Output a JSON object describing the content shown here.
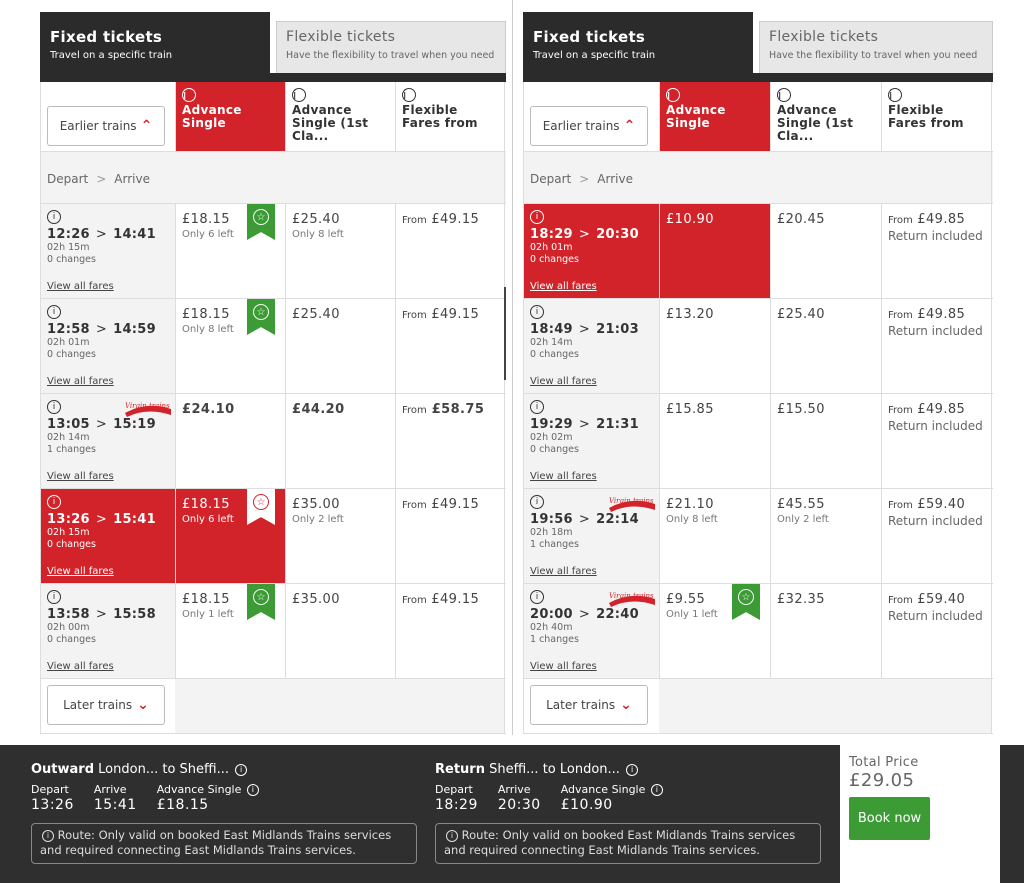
{
  "tabs": {
    "fixed_title": "Fixed tickets",
    "fixed_sub": "Travel on a specific train",
    "flex_title": "Flexible tickets",
    "flex_sub": "Have the flexibility to travel when you need"
  },
  "labels": {
    "earlier": "Earlier trains",
    "later": "Later trains",
    "depart": "Depart",
    "arrive": "Arrive",
    "view_all": "View all fares",
    "from": "From",
    "return_included": "Return included",
    "info": "i"
  },
  "fare_headers": [
    "Advance Single",
    "Advance Single (1st Cla...",
    "Flexible Fares from"
  ],
  "outward": {
    "trains": [
      {
        "dep": "12:26",
        "arr": "14:41",
        "dur": "02h 15m",
        "chg": "0 changes",
        "f1": "£18.15",
        "f1n": "Only 6 left",
        "f2": "£25.40",
        "f2n": "Only 8 left",
        "f3": "£49.15"
      },
      {
        "dep": "12:58",
        "arr": "14:59",
        "dur": "02h 01m",
        "chg": "0 changes",
        "f1": "£18.15",
        "f1n": "Only 8 left",
        "f2": "£25.40",
        "f2n": "",
        "f3": "£49.15"
      },
      {
        "dep": "13:05",
        "arr": "15:19",
        "dur": "02h 14m",
        "chg": "1 changes",
        "f1": "£24.10",
        "f1n": "",
        "f2": "£44.20",
        "f2n": "",
        "f3": "£58.75"
      },
      {
        "dep": "13:26",
        "arr": "15:41",
        "dur": "02h 15m",
        "chg": "0 changes",
        "f1": "£18.15",
        "f1n": "Only 6 left",
        "f2": "£35.00",
        "f2n": "Only 2 left",
        "f3": "£49.15"
      },
      {
        "dep": "13:58",
        "arr": "15:58",
        "dur": "02h 00m",
        "chg": "0 changes",
        "f1": "£18.15",
        "f1n": "Only 1 left",
        "f2": "£35.00",
        "f2n": "",
        "f3": "£49.15"
      }
    ]
  },
  "return": {
    "trains": [
      {
        "dep": "18:29",
        "arr": "20:30",
        "dur": "02h 01m",
        "chg": "0 changes",
        "f1": "£10.90",
        "f1n": "",
        "f2": "£20.45",
        "f2n": "",
        "f3": "£49.85"
      },
      {
        "dep": "18:49",
        "arr": "21:03",
        "dur": "02h 14m",
        "chg": "0 changes",
        "f1": "£13.20",
        "f1n": "",
        "f2": "£25.40",
        "f2n": "",
        "f3": "£49.85"
      },
      {
        "dep": "19:29",
        "arr": "21:31",
        "dur": "02h 02m",
        "chg": "0 changes",
        "f1": "£15.85",
        "f1n": "",
        "f2": "£15.50",
        "f2n": "",
        "f3": "£49.85"
      },
      {
        "dep": "19:56",
        "arr": "22:14",
        "dur": "02h 18m",
        "chg": "1 changes",
        "f1": "£21.10",
        "f1n": "Only 8 left",
        "f2": "£45.55",
        "f2n": "Only 2 left",
        "f3": "£59.40"
      },
      {
        "dep": "20:00",
        "arr": "22:40",
        "dur": "02h 40m",
        "chg": "1 changes",
        "f1": "£9.55",
        "f1n": "Only 1 left",
        "f2": "£32.35",
        "f2n": "",
        "f3": "£59.40"
      }
    ]
  },
  "virgin_logo": "Virgin trains",
  "footer": {
    "out_label": "Outward",
    "out_route": "London... to Sheffi...",
    "ret_label": "Return",
    "ret_route": "Sheffi... to London...",
    "col_depart": "Depart",
    "col_arrive": "Arrive",
    "col_fare": "Advance Single",
    "out_dep": "13:26",
    "out_arr": "15:41",
    "out_price": "£18.15",
    "ret_dep": "18:29",
    "ret_arr": "20:30",
    "ret_price": "£10.90",
    "route_note": "Route: Only valid on booked East Midlands Trains services and required connecting East Midlands Trains services.",
    "total_label": "Total Price",
    "total_value": "£29.05",
    "book": "Book now"
  },
  "colors": {
    "accent_red": "#d2232a",
    "green": "#3d9b35",
    "dark": "#2b2b2b"
  }
}
